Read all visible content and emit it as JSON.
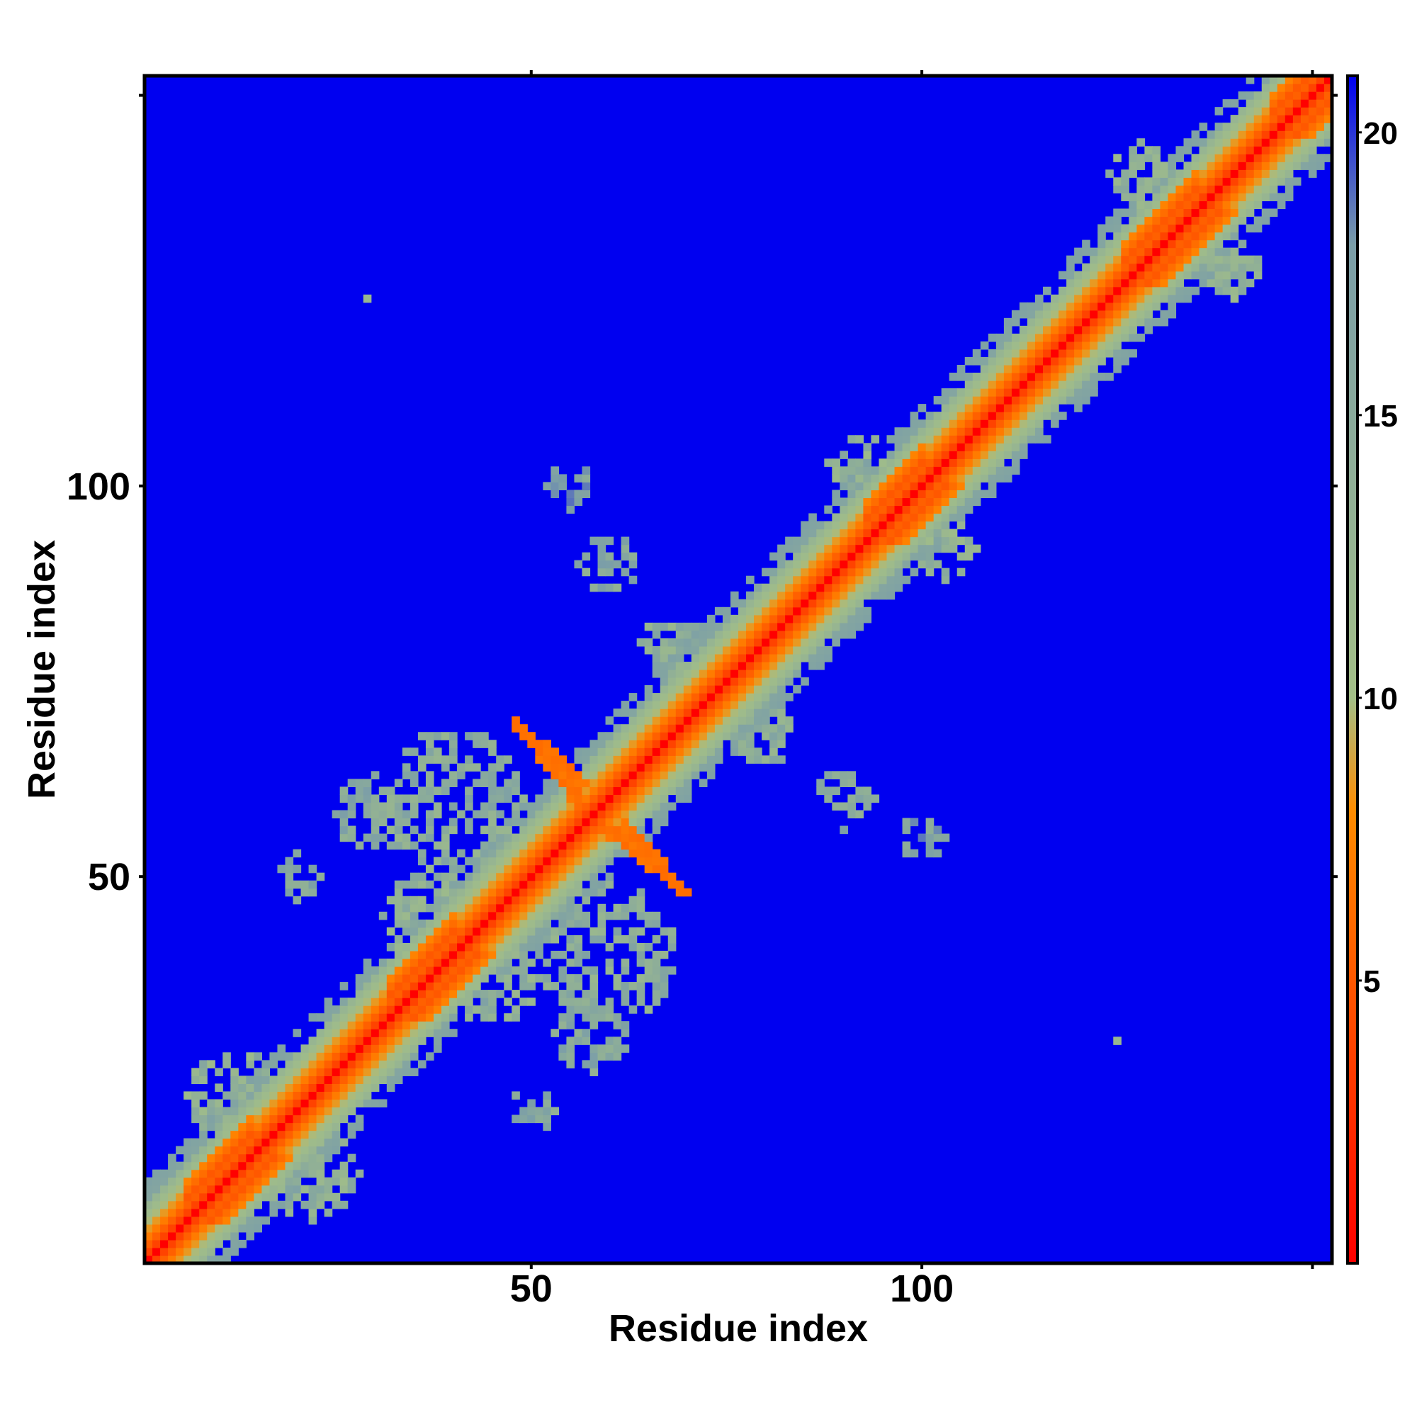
{
  "chart_data": {
    "type": "heatmap",
    "title": "",
    "xlabel": "Residue index",
    "ylabel": "Residue index",
    "n_residues": 152,
    "xlim": [
      1,
      152
    ],
    "ylim": [
      1,
      152
    ],
    "x_ticks": [
      50,
      100,
      150
    ],
    "x_tick_labels": [
      "50",
      "100",
      ""
    ],
    "y_ticks": [
      50,
      100,
      150
    ],
    "y_tick_labels": [
      "50",
      "100",
      ""
    ],
    "colorbar": {
      "range": [
        0,
        21
      ],
      "ticks": [
        5,
        10,
        15,
        20
      ],
      "tick_labels": [
        "5",
        "10",
        "15",
        "20"
      ],
      "colors": [
        "#ff0000",
        "#ff8c00",
        "#a3bf87",
        "#7b9ea8",
        "#0000f0"
      ],
      "stops": [
        0,
        8,
        10,
        18,
        21
      ]
    },
    "background_value": 21,
    "background_color": "#0000f0",
    "features": {
      "diagonal": {
        "description_values": [
          [
            0,
            0.0
          ],
          [
            1,
            3.8
          ],
          [
            2,
            5.5
          ],
          [
            3,
            7.0
          ],
          [
            4,
            8.5
          ],
          [
            5,
            9.8
          ],
          [
            6,
            11.0
          ],
          [
            7,
            12.5
          ]
        ]
      },
      "helices": [
        [
          6,
          14
        ],
        [
          32,
          40
        ],
        [
          93,
          100
        ],
        [
          126,
          135
        ],
        [
          145,
          152
        ]
      ],
      "sheet_contacts": [
        {
          "i_start": 48,
          "i_end": 56,
          "j_start": 69,
          "j_end": 62,
          "value": 6
        },
        {
          "i_start": 58,
          "i_end": 68,
          "j_start": 57,
          "j_end": 49,
          "value": 6
        }
      ],
      "clusters": [
        {
          "cx": 12,
          "cy": 22,
          "r": 6,
          "value": 11
        },
        {
          "cx": 22,
          "cy": 12,
          "r": 6,
          "value": 11
        },
        {
          "cx": 37,
          "cy": 45,
          "r": 6,
          "value": 11
        },
        {
          "cx": 45,
          "cy": 37,
          "r": 6,
          "value": 11
        },
        {
          "cx": 40,
          "cy": 60,
          "r": 9,
          "value": 12
        },
        {
          "cx": 60,
          "cy": 40,
          "r": 9,
          "value": 12
        },
        {
          "cx": 30,
          "cy": 58,
          "r": 5,
          "value": 13
        },
        {
          "cx": 58,
          "cy": 30,
          "r": 5,
          "value": 13
        },
        {
          "cx": 60,
          "cy": 90,
          "r": 4,
          "value": 13
        },
        {
          "cx": 90,
          "cy": 60,
          "r": 4,
          "value": 13
        },
        {
          "cx": 50,
          "cy": 20,
          "r": 3,
          "value": 13
        },
        {
          "cx": 20,
          "cy": 50,
          "r": 3,
          "value": 13
        },
        {
          "cx": 55,
          "cy": 100,
          "r": 3,
          "value": 14
        },
        {
          "cx": 100,
          "cy": 55,
          "r": 3,
          "value": 14
        },
        {
          "cx": 92,
          "cy": 103,
          "r": 4,
          "value": 11
        },
        {
          "cx": 103,
          "cy": 92,
          "r": 4,
          "value": 11
        },
        {
          "cx": 128,
          "cy": 140,
          "r": 4,
          "value": 11
        },
        {
          "cx": 140,
          "cy": 128,
          "r": 4,
          "value": 11
        },
        {
          "cx": 68,
          "cy": 80,
          "r": 4,
          "value": 12
        },
        {
          "cx": 80,
          "cy": 68,
          "r": 4,
          "value": 12
        }
      ],
      "isolated_points": [
        [
          29,
          124
        ],
        [
          125,
          29
        ]
      ]
    }
  }
}
